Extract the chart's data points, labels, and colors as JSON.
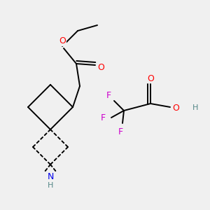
{
  "bg_color": "#f0f0f0",
  "colors": {
    "O": "#ff0000",
    "N": "#0000ee",
    "F": "#cc00cc",
    "H": "#558888",
    "bond": "#000000"
  },
  "lw": 1.4,
  "fs": 8.5
}
